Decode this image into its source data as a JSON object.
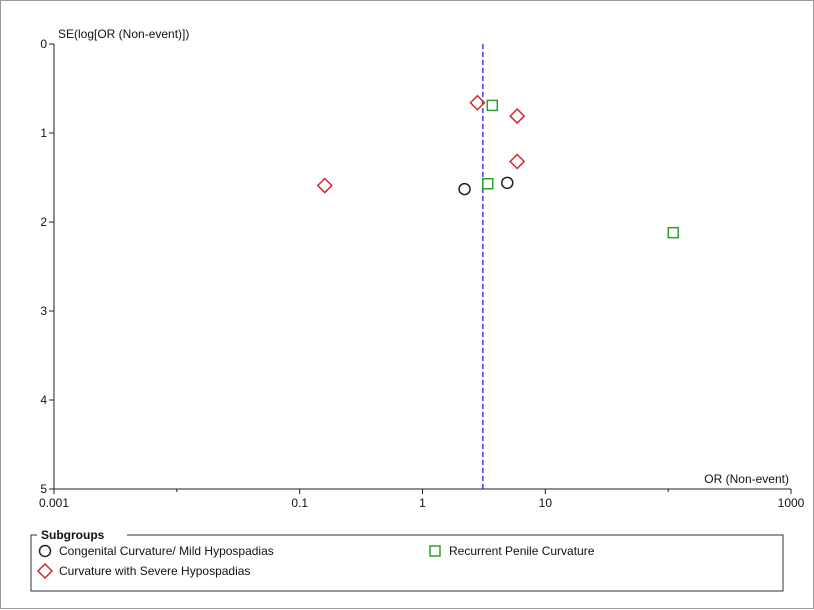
{
  "chart_data": {
    "type": "scatter",
    "title": "",
    "ylabel": "SE(log[OR (Non-event)])",
    "xlabel": "OR (Non-event)",
    "x_scale": "log",
    "xlim": [
      0.001,
      1000
    ],
    "ylim": [
      0,
      5
    ],
    "y_inverted": true,
    "x_ticks": [
      0.001,
      0.1,
      1,
      10,
      1000
    ],
    "x_tick_labels": [
      "0.001",
      "0.1",
      "1",
      "10",
      "1000"
    ],
    "y_ticks": [
      0,
      1,
      2,
      3,
      4,
      5
    ],
    "y_tick_labels": [
      "0",
      "1",
      "2",
      "3",
      "4",
      "5"
    ],
    "reference_line": {
      "x": 3.1,
      "style": "dashed",
      "color": "#3333cc"
    },
    "grid": false,
    "legend": {
      "title": "Subgroups",
      "placement": "bottom"
    },
    "series": [
      {
        "name": "Congenital Curvature/ Mild Hypospadias",
        "marker": "circle",
        "color": "#222222",
        "points": [
          {
            "x": 2.2,
            "y": 1.63
          },
          {
            "x": 4.9,
            "y": 1.56
          }
        ]
      },
      {
        "name": "Recurrent Penile Curvature",
        "marker": "square",
        "color": "#2ca02c",
        "points": [
          {
            "x": 3.7,
            "y": 0.69
          },
          {
            "x": 3.4,
            "y": 1.57
          },
          {
            "x": 110,
            "y": 2.12
          }
        ]
      },
      {
        "name": "Curvature with Severe Hypospadias",
        "marker": "diamond",
        "color": "#d62728",
        "points": [
          {
            "x": 2.8,
            "y": 0.66
          },
          {
            "x": 5.9,
            "y": 0.81
          },
          {
            "x": 5.9,
            "y": 1.32
          },
          {
            "x": 0.16,
            "y": 1.59
          }
        ]
      }
    ]
  }
}
